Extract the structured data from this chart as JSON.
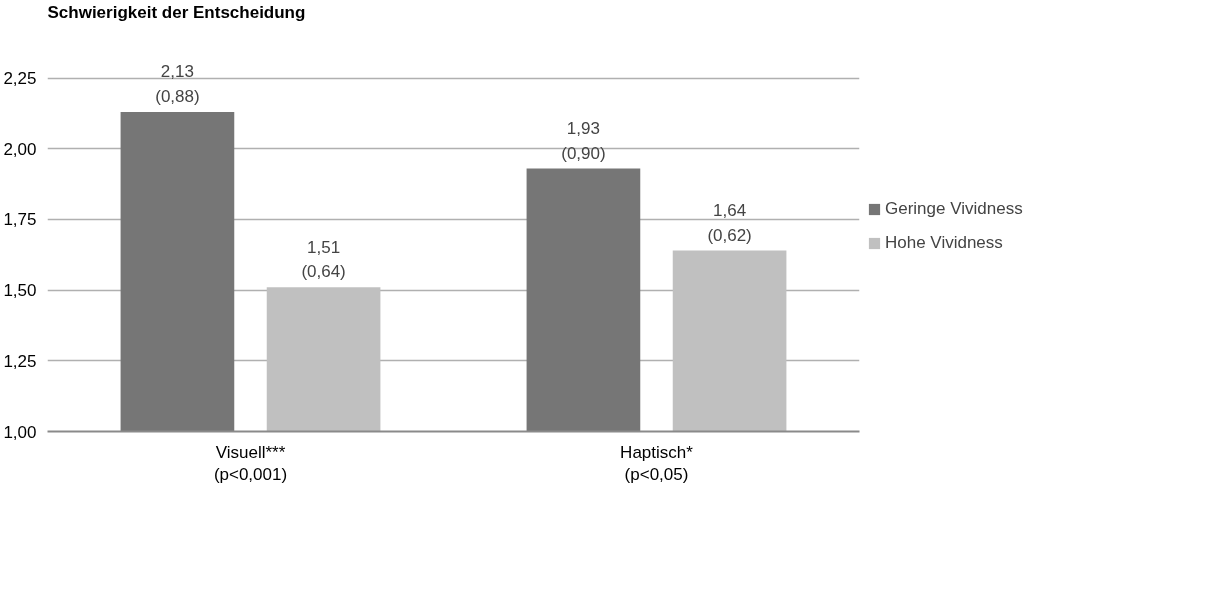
{
  "chart_data": {
    "type": "bar",
    "title": "Schwierigkeit der Entscheidung",
    "categories": [
      "Visuell***\n(p<0,001)",
      "Haptisch*\n(p<0,05)"
    ],
    "series": [
      {
        "name": "Geringe Vividness",
        "color": "#767676",
        "values": [
          2.13,
          1.93
        ],
        "value_labels": [
          "2,13\n(0,88)",
          "1,93\n(0,90)"
        ]
      },
      {
        "name": "Hohe Vividness",
        "color": "#c0c0c0",
        "values": [
          1.51,
          1.64
        ],
        "value_labels": [
          "1,51\n(0,64)",
          "1,64\n(0,62)"
        ]
      }
    ],
    "ylim": [
      1,
      2.25
    ],
    "yticks": [
      {
        "value": 1,
        "label": "1,00"
      },
      {
        "value": 1.25,
        "label": "1,25"
      },
      {
        "value": 1.5,
        "label": "1,50"
      },
      {
        "value": 1.75,
        "label": "1,75"
      },
      {
        "value": 2,
        "label": "2,00"
      },
      {
        "value": 2.25,
        "label": "2,25"
      }
    ],
    "grid": "y",
    "legend": "right"
  }
}
